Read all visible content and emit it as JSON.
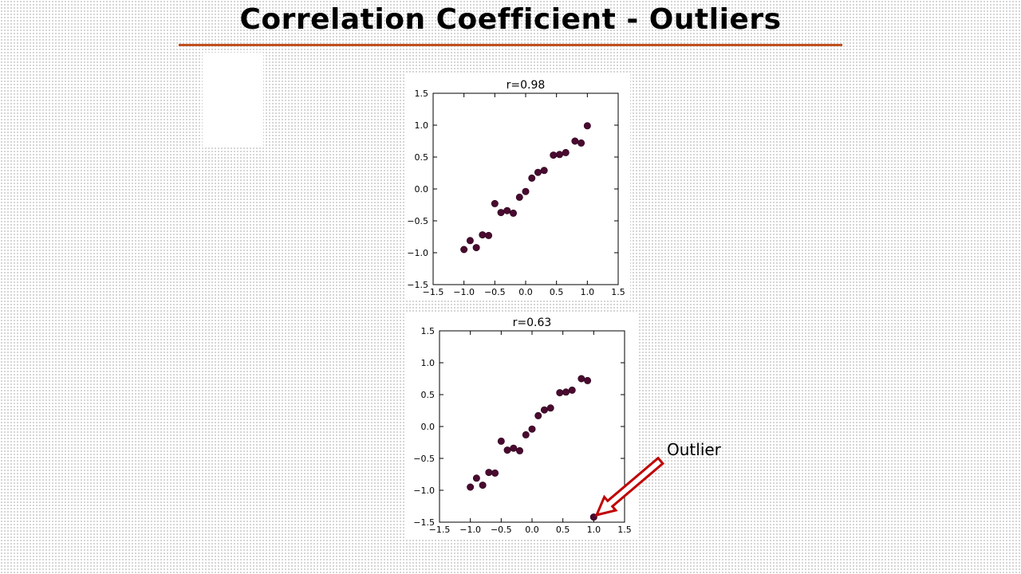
{
  "slide": {
    "title": "Correlation Coefficient - Outliers",
    "annotation": "Outlier",
    "colors": {
      "title_rule": "#c0501f",
      "point": "#4a0a30",
      "arrow": "#c00000"
    }
  },
  "chart_data": [
    {
      "type": "scatter",
      "title": "r=0.98",
      "xlim": [
        -1.5,
        1.5
      ],
      "ylim": [
        -1.5,
        1.5
      ],
      "xticks": [
        "−1.5",
        "−1.0",
        "−0.5",
        "0.0",
        "0.5",
        "1.0",
        "1.5"
      ],
      "yticks": [
        "−1.5",
        "−1.0",
        "−0.5",
        "0.0",
        "0.5",
        "1.0",
        "1.5"
      ],
      "grid": false,
      "points": [
        {
          "x": -1.0,
          "y": -0.95
        },
        {
          "x": -0.9,
          "y": -0.81
        },
        {
          "x": -0.8,
          "y": -0.92
        },
        {
          "x": -0.7,
          "y": -0.72
        },
        {
          "x": -0.6,
          "y": -0.73
        },
        {
          "x": -0.5,
          "y": -0.23
        },
        {
          "x": -0.4,
          "y": -0.37
        },
        {
          "x": -0.3,
          "y": -0.34
        },
        {
          "x": -0.2,
          "y": -0.38
        },
        {
          "x": -0.1,
          "y": -0.13
        },
        {
          "x": 0.0,
          "y": -0.04
        },
        {
          "x": 0.1,
          "y": 0.17
        },
        {
          "x": 0.2,
          "y": 0.26
        },
        {
          "x": 0.3,
          "y": 0.29
        },
        {
          "x": 0.45,
          "y": 0.53
        },
        {
          "x": 0.55,
          "y": 0.54
        },
        {
          "x": 0.65,
          "y": 0.57
        },
        {
          "x": 0.8,
          "y": 0.75
        },
        {
          "x": 0.9,
          "y": 0.72
        },
        {
          "x": 1.0,
          "y": 0.99
        }
      ]
    },
    {
      "type": "scatter",
      "title": "r=0.63",
      "xlim": [
        -1.5,
        1.5
      ],
      "ylim": [
        -1.5,
        1.5
      ],
      "xticks": [
        "−1.5",
        "−1.0",
        "−0.5",
        "0.0",
        "0.5",
        "1.0",
        "1.5"
      ],
      "yticks": [
        "−1.5",
        "−1.0",
        "−0.5",
        "0.0",
        "0.5",
        "1.0",
        "1.5"
      ],
      "grid": false,
      "points": [
        {
          "x": -1.0,
          "y": -0.95
        },
        {
          "x": -0.9,
          "y": -0.81
        },
        {
          "x": -0.8,
          "y": -0.92
        },
        {
          "x": -0.7,
          "y": -0.72
        },
        {
          "x": -0.6,
          "y": -0.73
        },
        {
          "x": -0.5,
          "y": -0.23
        },
        {
          "x": -0.4,
          "y": -0.37
        },
        {
          "x": -0.3,
          "y": -0.34
        },
        {
          "x": -0.2,
          "y": -0.38
        },
        {
          "x": -0.1,
          "y": -0.13
        },
        {
          "x": 0.0,
          "y": -0.04
        },
        {
          "x": 0.1,
          "y": 0.17
        },
        {
          "x": 0.2,
          "y": 0.26
        },
        {
          "x": 0.3,
          "y": 0.29
        },
        {
          "x": 0.45,
          "y": 0.53
        },
        {
          "x": 0.55,
          "y": 0.54
        },
        {
          "x": 0.65,
          "y": 0.57
        },
        {
          "x": 0.8,
          "y": 0.75
        },
        {
          "x": 0.9,
          "y": 0.72
        },
        {
          "x": 1.0,
          "y": -1.42
        }
      ]
    }
  ]
}
